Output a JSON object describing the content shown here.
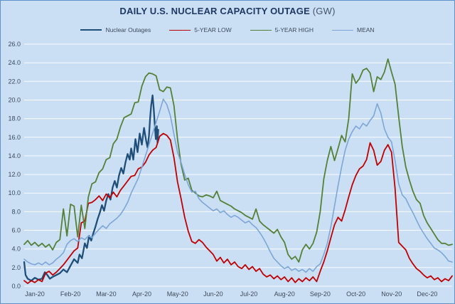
{
  "title": {
    "main": "DAILY U.S. NUCLEAR CAPACITY OUTAGE",
    "unit": "(GW)"
  },
  "colors": {
    "background": "#CBDFF4",
    "border": "#5E92C8",
    "gridline": "#FFFFFF",
    "title": "#1F3864",
    "title_unit": "#44546A",
    "axis_text": "#3B4A5A",
    "legend_text": "#3B4A5A"
  },
  "chart_data": {
    "type": "line",
    "title": "DAILY U.S. NUCLEAR CAPACITY OUTAGE (GW)",
    "xlabel": "",
    "ylabel": "GW",
    "x_unit": "months since Jan-1-2020 (0 = Jan 1, 12 = Dec 31)",
    "ylim": [
      0,
      26
    ],
    "ytick_step": 2,
    "grid": true,
    "legend_position": "top",
    "y_ticks": [
      "0.0",
      "2.0",
      "4.0",
      "6.0",
      "8.0",
      "10.0",
      "12.0",
      "14.0",
      "16.0",
      "18.0",
      "20.0",
      "22.0",
      "24.0",
      "26.0"
    ],
    "x_ticks": [
      "Jan-20",
      "Feb-20",
      "Mar-20",
      "Apr-20",
      "May-20",
      "Jun-20",
      "Jul-20",
      "Aug-20",
      "Sep-20",
      "Oct-20",
      "Nov-20",
      "Dec-20"
    ],
    "series": [
      {
        "name": "Nuclear Outages",
        "color": "#1F4E79",
        "line_width": 2.3,
        "x": [
          0,
          0.04,
          0.1,
          0.2,
          0.3,
          0.4,
          0.5,
          0.58,
          0.65,
          0.72,
          0.8,
          0.9,
          1.0,
          1.1,
          1.2,
          1.3,
          1.4,
          1.5,
          1.55,
          1.62,
          1.7,
          1.76,
          1.82,
          1.88,
          1.94,
          2.0,
          2.06,
          2.12,
          2.18,
          2.24,
          2.3,
          2.36,
          2.42,
          2.48,
          2.54,
          2.6,
          2.66,
          2.72,
          2.78,
          2.84,
          2.9,
          2.96,
          3.0,
          3.06,
          3.12,
          3.18,
          3.24,
          3.3,
          3.36,
          3.42,
          3.46,
          3.5,
          3.53,
          3.56,
          3.6,
          3.63,
          3.66,
          3.69,
          3.72,
          3.74,
          3.76
        ],
        "values": [
          2.6,
          1.2,
          0.8,
          0.6,
          0.9,
          0.7,
          0.8,
          1.5,
          1.2,
          0.8,
          1.0,
          1.2,
          1.4,
          1.8,
          1.5,
          2.2,
          2.9,
          2.5,
          3.4,
          3.0,
          4.6,
          4.1,
          5.4,
          4.9,
          5.7,
          6.4,
          7.2,
          7.9,
          8.7,
          8.1,
          9.2,
          9.9,
          9.3,
          10.6,
          11.3,
          10.6,
          11.9,
          12.7,
          12.1,
          13.3,
          14.2,
          13.6,
          14.8,
          13.6,
          15.8,
          14.4,
          16.4,
          15.2,
          17.0,
          15.6,
          14.9,
          16.2,
          18.0,
          19.4,
          20.5,
          19.2,
          17.5,
          15.8,
          17.2,
          15.4,
          16.8
        ]
      },
      {
        "name": "5-YEAR LOW",
        "color": "#C00000",
        "line_width": 1.8,
        "x0": 0,
        "dx": 0.1,
        "values": [
          0.6,
          0.3,
          0.6,
          0.4,
          0.7,
          0.5,
          1.4,
          1.6,
          1.2,
          1.5,
          1.9,
          2.3,
          2.8,
          3.3,
          3.8,
          4.1,
          6.8,
          7.0,
          8.9,
          9.0,
          9.3,
          9.7,
          9.2,
          9.9,
          9.5,
          10.1,
          9.6,
          10.3,
          10.8,
          11.3,
          11.8,
          11.9,
          12.6,
          12.8,
          13.3,
          14.1,
          14.6,
          14.9,
          16.1,
          16.4,
          16.2,
          15.7,
          13.8,
          11.2,
          9.4,
          7.4,
          5.9,
          4.8,
          4.6,
          5.0,
          4.7,
          4.2,
          3.8,
          3.4,
          2.7,
          3.1,
          2.5,
          2.9,
          2.3,
          2.6,
          2.1,
          1.9,
          2.3,
          1.8,
          2.1,
          1.6,
          1.9,
          1.3,
          1.0,
          1.2,
          0.8,
          1.1,
          0.7,
          1.0,
          0.5,
          0.9,
          0.4,
          0.8,
          0.5,
          0.9,
          0.6,
          1.0,
          0.5,
          1.6,
          2.6,
          3.8,
          5.2,
          6.6,
          7.4,
          7.0,
          8.2,
          9.6,
          10.9,
          11.9,
          12.6,
          12.9,
          13.6,
          15.4,
          14.6,
          13.0,
          13.4,
          14.6,
          15.2,
          14.4,
          10.5,
          4.7,
          4.3,
          3.9,
          3.0,
          2.4,
          1.9,
          1.6,
          1.2,
          0.9,
          1.1,
          0.7,
          0.9,
          0.5,
          0.8,
          0.6,
          1.1
        ]
      },
      {
        "name": "5-YEAR HIGH",
        "color": "#538135",
        "line_width": 1.8,
        "x0": 0,
        "dx": 0.1,
        "values": [
          4.5,
          4.9,
          4.4,
          4.7,
          4.3,
          4.6,
          4.2,
          4.5,
          3.9,
          4.7,
          5.0,
          8.3,
          5.4,
          8.8,
          8.6,
          5.3,
          8.7,
          6.2,
          9.6,
          11.0,
          11.2,
          12.2,
          12.6,
          13.6,
          13.8,
          15.3,
          15.8,
          17.1,
          18.1,
          18.3,
          18.5,
          19.7,
          19.8,
          21.5,
          22.5,
          22.9,
          22.8,
          22.6,
          21.1,
          20.9,
          21.4,
          21.3,
          19.4,
          15.8,
          13.1,
          11.4,
          11.6,
          10.3,
          10.0,
          9.7,
          9.6,
          9.8,
          9.7,
          9.5,
          10.2,
          9.2,
          9.0,
          8.8,
          8.6,
          8.3,
          8.1,
          7.9,
          7.6,
          7.4,
          7.2,
          8.3,
          7.0,
          6.6,
          6.3,
          6.0,
          5.7,
          6.1,
          5.3,
          4.7,
          3.4,
          2.9,
          3.2,
          2.6,
          3.9,
          4.5,
          4.0,
          4.6,
          5.8,
          8.0,
          11.5,
          13.5,
          15.0,
          13.5,
          14.8,
          16.2,
          15.5,
          18.0,
          22.8,
          21.8,
          22.3,
          23.2,
          23.4,
          22.9,
          20.9,
          22.5,
          22.2,
          23.0,
          24.4,
          23.0,
          21.7,
          18.2,
          15.0,
          12.8,
          11.4,
          10.2,
          9.3,
          8.9,
          7.6,
          6.8,
          6.2,
          5.6,
          5.0,
          4.6,
          4.6,
          4.4,
          4.5
        ]
      },
      {
        "name": "MEAN",
        "color": "#7CA6D8",
        "line_width": 1.6,
        "x0": 0,
        "dx": 0.1,
        "values": [
          2.9,
          2.6,
          2.4,
          2.3,
          2.5,
          2.3,
          2.6,
          2.3,
          2.5,
          2.9,
          3.2,
          3.6,
          4.5,
          4.9,
          5.1,
          4.8,
          5.2,
          5.0,
          5.4,
          5.2,
          5.7,
          6.1,
          6.5,
          6.2,
          6.7,
          7.0,
          7.3,
          7.7,
          8.3,
          9.0,
          10.0,
          10.8,
          11.6,
          12.8,
          14.0,
          15.2,
          16.4,
          17.6,
          18.8,
          20.1,
          19.5,
          18.3,
          16.3,
          14.4,
          13.3,
          12.0,
          10.9,
          10.1,
          10.2,
          9.4,
          9.0,
          8.7,
          8.4,
          8.1,
          8.3,
          7.9,
          8.1,
          7.7,
          7.4,
          7.6,
          7.4,
          7.1,
          6.8,
          7.0,
          6.6,
          6.3,
          5.8,
          5.2,
          4.5,
          3.7,
          3.0,
          2.6,
          2.2,
          1.9,
          2.1,
          1.7,
          1.9,
          1.6,
          1.8,
          1.5,
          1.9,
          1.6,
          2.1,
          2.4,
          3.4,
          4.6,
          6.4,
          8.6,
          10.8,
          12.8,
          14.6,
          15.8,
          16.6,
          17.2,
          16.9,
          17.5,
          17.2,
          17.8,
          18.3,
          19.6,
          18.6,
          16.9,
          16.0,
          15.5,
          13.5,
          11.0,
          9.8,
          9.4,
          8.6,
          7.9,
          7.1,
          6.3,
          5.7,
          5.1,
          4.6,
          4.1,
          3.9,
          3.6,
          3.2,
          2.7,
          2.6
        ]
      }
    ]
  }
}
